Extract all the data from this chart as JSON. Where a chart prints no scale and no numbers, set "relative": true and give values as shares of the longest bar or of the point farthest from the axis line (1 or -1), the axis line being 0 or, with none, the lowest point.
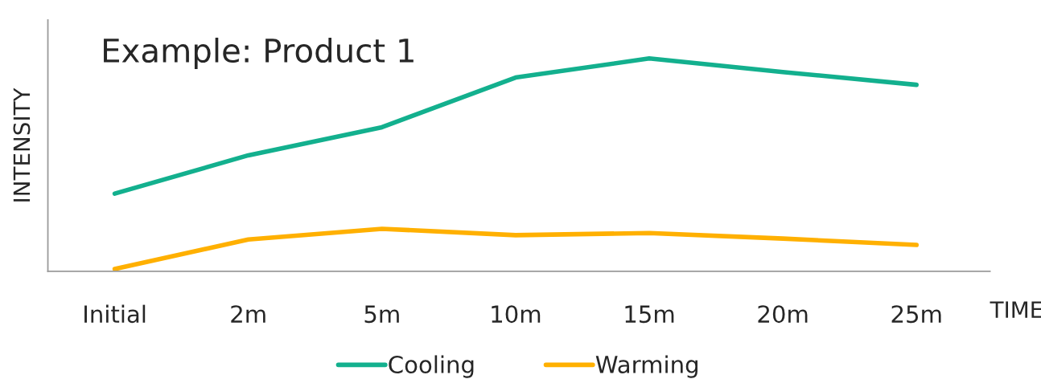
{
  "chart_data": {
    "type": "line",
    "title": "Example: Product 1",
    "xlabel": "TIME",
    "ylabel": "INTENSITY",
    "relative": true,
    "categories": [
      "Initial",
      "2m",
      "5m",
      "10m",
      "15m",
      "20m",
      "25m"
    ],
    "series": [
      {
        "name": "Cooling",
        "color": "#13b08e",
        "values": [
          0.365,
          0.545,
          0.677,
          0.91,
          1,
          0.936,
          0.876
        ]
      },
      {
        "name": "Warming",
        "color": "#ffb000",
        "values": [
          0.011,
          0.15,
          0.2,
          0.17,
          0.18,
          0.154,
          0.124
        ]
      }
    ],
    "legend": "bottom",
    "grid": false,
    "marker": "none",
    "line_style": "solid"
  }
}
